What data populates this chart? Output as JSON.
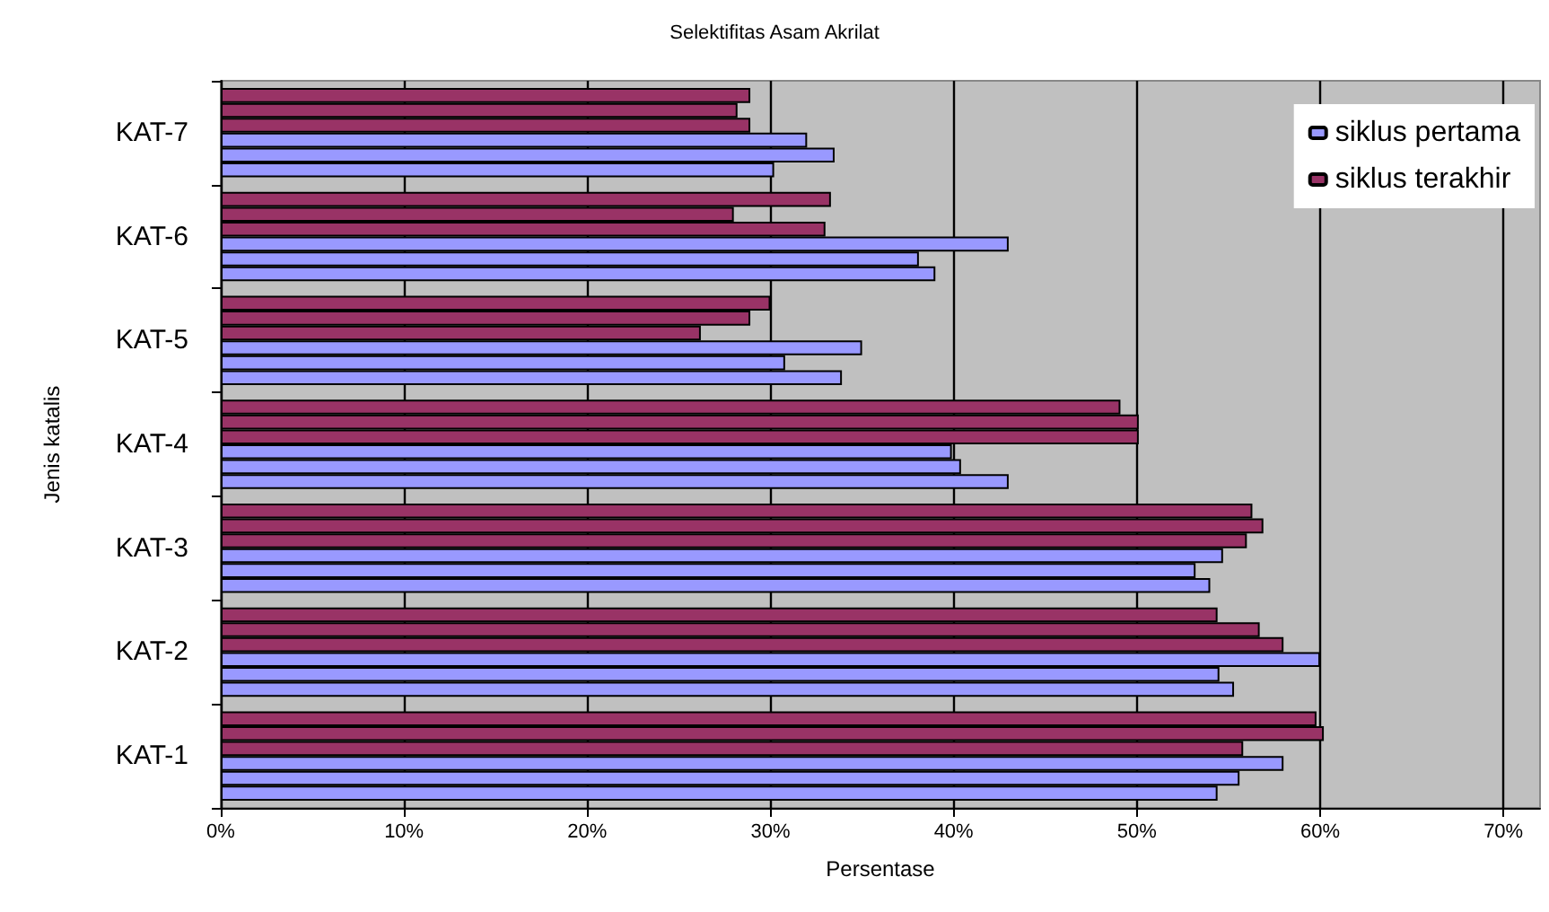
{
  "chart_data": {
    "type": "bar",
    "orientation": "horizontal",
    "title": "Selektifitas Asam Akrilat",
    "xlabel": "Persentase",
    "ylabel": "Jenis katalis",
    "categories": [
      "KAT-7",
      "KAT-6",
      "KAT-5",
      "KAT-4",
      "KAT-3",
      "KAT-2",
      "KAT-1"
    ],
    "series": [
      {
        "color": "#993366",
        "values": [
          28.9,
          33.3,
          30.0,
          49.1,
          56.3,
          54.4,
          59.8
        ]
      },
      {
        "color": "#993366",
        "values": [
          28.2,
          28.0,
          28.9,
          50.1,
          56.9,
          56.7,
          60.2
        ]
      },
      {
        "name": "siklus terakhir",
        "color": "#993366",
        "values": [
          28.9,
          33.0,
          26.2,
          50.1,
          56.0,
          58.0,
          55.8
        ]
      },
      {
        "color": "#9999ff",
        "values": [
          32.0,
          43.0,
          35.0,
          39.9,
          54.7,
          60.0,
          58.0
        ]
      },
      {
        "color": "#9999ff",
        "values": [
          33.5,
          38.1,
          30.8,
          40.4,
          53.2,
          54.5,
          55.6
        ]
      },
      {
        "name": "siklus pertama",
        "color": "#9999ff",
        "values": [
          30.2,
          39.0,
          33.9,
          43.0,
          54.0,
          55.3,
          54.4
        ]
      }
    ],
    "xlim": [
      0,
      72
    ],
    "xticks": [
      {
        "value": 0,
        "label": "0%"
      },
      {
        "value": 10,
        "label": "10%"
      },
      {
        "value": 20,
        "label": "20%"
      },
      {
        "value": 30,
        "label": "30%"
      },
      {
        "value": 40,
        "label": "40%"
      },
      {
        "value": 50,
        "label": "50%"
      },
      {
        "value": 60,
        "label": "60%"
      },
      {
        "value": 70,
        "label": "70%"
      }
    ],
    "grid": "x",
    "legend": "top right"
  }
}
